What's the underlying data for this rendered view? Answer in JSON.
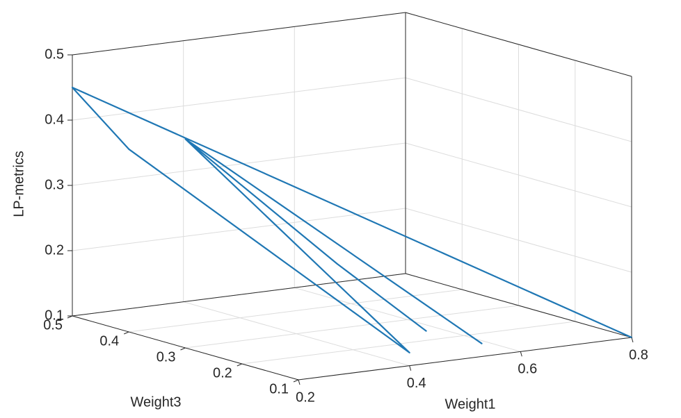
{
  "chart_data": {
    "type": "line",
    "projection": "3d",
    "title": "",
    "xlabel": "Weight1",
    "ylabel": "Weight3",
    "zlabel": "LP-metrics",
    "xlim": [
      0.2,
      0.8
    ],
    "ylim": [
      0.1,
      0.5
    ],
    "zlim": [
      0.1,
      0.5
    ],
    "xticks": [
      "0.2",
      "0.4",
      "0.6",
      "0.8"
    ],
    "yticks": [
      "0.1",
      "0.2",
      "0.3",
      "0.4",
      "0.5"
    ],
    "zticks": [
      "0.1",
      "0.2",
      "0.3",
      "0.4",
      "0.5"
    ],
    "grid": true,
    "series_color": "#1f77b4",
    "points": [
      {
        "x": 0.2,
        "y": 0.5,
        "z": 0.45
      },
      {
        "x": 0.8,
        "y": 0.1,
        "z": 0.1
      },
      {
        "x": 0.2,
        "y": 0.5,
        "z": 0.45
      },
      {
        "x": 0.2,
        "y": 0.4,
        "z": 0.38
      },
      {
        "x": 0.4,
        "y": 0.1,
        "z": 0.12
      },
      {
        "x": 0.2,
        "y": 0.3,
        "z": 0.42
      },
      {
        "x": 0.53,
        "y": 0.1,
        "z": 0.12
      },
      {
        "x": 0.2,
        "y": 0.3,
        "z": 0.42
      },
      {
        "x": 0.27,
        "y": 0.1,
        "z": 0.27
      },
      {
        "x": 0.43,
        "y": 0.1,
        "z": 0.15
      }
    ]
  }
}
